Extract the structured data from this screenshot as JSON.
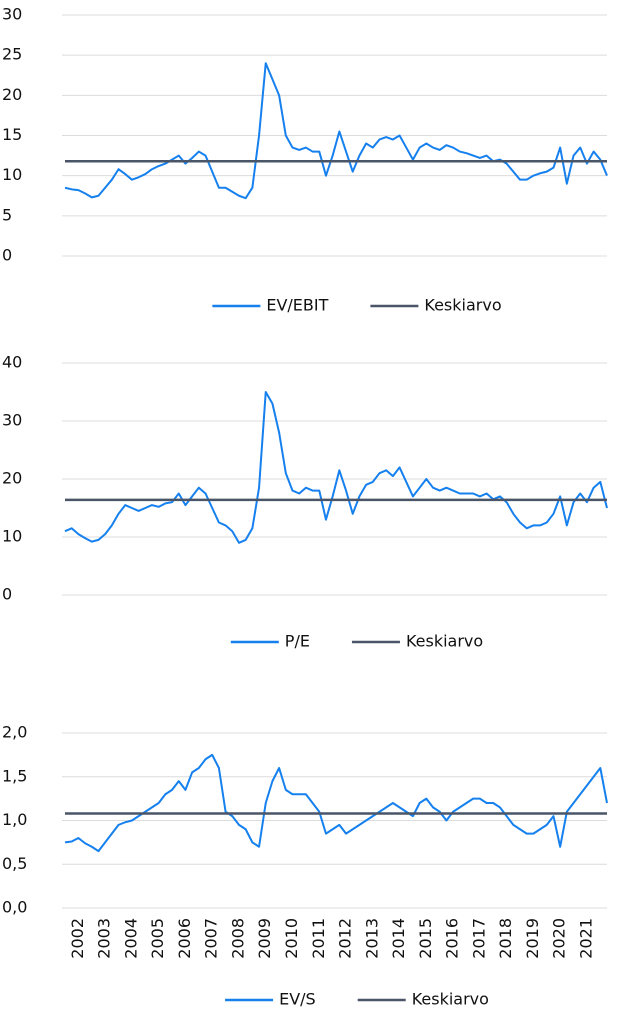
{
  "chart_data": [
    {
      "type": "line",
      "ylim": [
        0,
        30
      ],
      "yticks": [
        0,
        5,
        10,
        15,
        20,
        25,
        30
      ],
      "grid": true,
      "xlim": [
        2001.5,
        2021.75
      ],
      "x": [
        2001.5,
        2001.75,
        2002,
        2002.25,
        2002.5,
        2002.75,
        2003,
        2003.25,
        2003.5,
        2003.75,
        2004,
        2004.25,
        2004.5,
        2004.75,
        2005,
        2005.25,
        2005.5,
        2005.75,
        2006,
        2006.25,
        2006.5,
        2006.75,
        2007,
        2007.25,
        2007.5,
        2007.75,
        2008,
        2008.25,
        2008.5,
        2008.75,
        2009,
        2009.25,
        2009.5,
        2009.75,
        2010,
        2010.25,
        2010.5,
        2010.75,
        2011,
        2011.25,
        2011.5,
        2011.75,
        2012,
        2012.25,
        2012.5,
        2012.75,
        2013,
        2013.25,
        2013.5,
        2013.75,
        2014,
        2014.25,
        2014.5,
        2014.75,
        2015,
        2015.25,
        2015.5,
        2015.75,
        2016,
        2016.25,
        2016.5,
        2016.75,
        2017,
        2017.25,
        2017.5,
        2017.75,
        2018,
        2018.25,
        2018.5,
        2018.75,
        2019,
        2019.25,
        2019.5,
        2019.75,
        2020,
        2020.25,
        2020.5,
        2020.75,
        2021,
        2021.25,
        2021.5,
        2021.75
      ],
      "series": [
        {
          "name": "EV/EBIT",
          "color": "#1580ee",
          "values": [
            8.5,
            8.3,
            8.2,
            7.8,
            7.3,
            7.5,
            8.5,
            9.5,
            10.8,
            10.2,
            9.5,
            9.8,
            10.2,
            10.8,
            11.2,
            11.5,
            12,
            12.5,
            11.5,
            12.2,
            13,
            12.5,
            10.5,
            8.5,
            8.5,
            8,
            7.5,
            7.2,
            8.5,
            15,
            24,
            22,
            20,
            15,
            13.5,
            13.2,
            13.5,
            13,
            13,
            10,
            12.5,
            15.5,
            13,
            10.5,
            12.5,
            14,
            13.5,
            14.5,
            14.8,
            14.5,
            15,
            13.5,
            12,
            13.5,
            14,
            13.5,
            13.2,
            13.8,
            13.5,
            13,
            12.8,
            12.5,
            12.2,
            12.5,
            11.8,
            12,
            11.5,
            10.5,
            9.5,
            9.5,
            10,
            10.3,
            10.5,
            11,
            13.5,
            9,
            12.5,
            13.5,
            11.5,
            13,
            12,
            10
          ]
        },
        {
          "name": "Keskiarvo",
          "color": "#4a5668",
          "x": [
            2001.5,
            2021.75
          ],
          "values": [
            11.8,
            11.8
          ]
        }
      ]
    },
    {
      "type": "line",
      "ylim": [
        0,
        40
      ],
      "yticks": [
        0,
        10,
        20,
        30,
        40
      ],
      "grid": true,
      "xlim": [
        2001.5,
        2021.75
      ],
      "x": [
        2001.5,
        2001.75,
        2002,
        2002.25,
        2002.5,
        2002.75,
        2003,
        2003.25,
        2003.5,
        2003.75,
        2004,
        2004.25,
        2004.5,
        2004.75,
        2005,
        2005.25,
        2005.5,
        2005.75,
        2006,
        2006.25,
        2006.5,
        2006.75,
        2007,
        2007.25,
        2007.5,
        2007.75,
        2008,
        2008.25,
        2008.5,
        2008.75,
        2009,
        2009.25,
        2009.5,
        2009.75,
        2010,
        2010.25,
        2010.5,
        2010.75,
        2011,
        2011.25,
        2011.5,
        2011.75,
        2012,
        2012.25,
        2012.5,
        2012.75,
        2013,
        2013.25,
        2013.5,
        2013.75,
        2014,
        2014.25,
        2014.5,
        2014.75,
        2015,
        2015.25,
        2015.5,
        2015.75,
        2016,
        2016.25,
        2016.5,
        2016.75,
        2017,
        2017.25,
        2017.5,
        2017.75,
        2018,
        2018.25,
        2018.5,
        2018.75,
        2019,
        2019.25,
        2019.5,
        2019.75,
        2020,
        2020.25,
        2020.5,
        2020.75,
        2021,
        2021.25,
        2021.5,
        2021.75
      ],
      "series": [
        {
          "name": "P/E",
          "color": "#1580ee",
          "values": [
            11,
            11.5,
            10.5,
            9.8,
            9.2,
            9.5,
            10.5,
            12,
            14,
            15.5,
            15,
            14.5,
            15,
            15.5,
            15.2,
            15.8,
            16,
            17.5,
            15.5,
            17,
            18.5,
            17.5,
            15,
            12.5,
            12,
            11,
            9,
            9.5,
            11.5,
            18.5,
            35,
            33,
            28,
            21,
            18,
            17.5,
            18.5,
            18,
            18,
            13,
            17,
            21.5,
            18,
            14,
            17,
            19,
            19.5,
            21,
            21.5,
            20.5,
            22,
            19.5,
            17,
            18.5,
            20,
            18.5,
            18,
            18.5,
            18,
            17.5,
            17.5,
            17.5,
            17,
            17.5,
            16.5,
            17,
            16,
            14,
            12.5,
            11.5,
            12,
            12,
            12.5,
            14,
            17,
            12,
            16,
            17.5,
            16,
            18.5,
            19.5,
            15
          ]
        },
        {
          "name": "Keskiarvo",
          "color": "#4a5668",
          "x": [
            2001.5,
            2021.75
          ],
          "values": [
            16.4,
            16.4
          ]
        }
      ]
    },
    {
      "type": "line",
      "ylim": [
        0,
        2
      ],
      "yticks": [
        {
          "value": 0,
          "label": "0,0"
        },
        {
          "value": 0.5,
          "label": "0,5"
        },
        {
          "value": 1,
          "label": "1,0"
        },
        {
          "value": 1.5,
          "label": "1,5"
        },
        {
          "value": 2,
          "label": "2,0"
        }
      ],
      "grid": true,
      "xlim": [
        2001.5,
        2021.75
      ],
      "xticks": [
        2002,
        2003,
        2004,
        2005,
        2006,
        2007,
        2008,
        2009,
        2010,
        2011,
        2012,
        2013,
        2014,
        2015,
        2016,
        2017,
        2018,
        2019,
        2020,
        2021
      ],
      "x": [
        2001.5,
        2001.75,
        2002,
        2002.25,
        2002.5,
        2002.75,
        2003,
        2003.25,
        2003.5,
        2003.75,
        2004,
        2004.25,
        2004.5,
        2004.75,
        2005,
        2005.25,
        2005.5,
        2005.75,
        2006,
        2006.25,
        2006.5,
        2006.75,
        2007,
        2007.25,
        2007.5,
        2007.75,
        2008,
        2008.25,
        2008.5,
        2008.75,
        2009,
        2009.25,
        2009.5,
        2009.75,
        2010,
        2010.25,
        2010.5,
        2010.75,
        2011,
        2011.25,
        2011.5,
        2011.75,
        2012,
        2012.25,
        2012.5,
        2012.75,
        2013,
        2013.25,
        2013.5,
        2013.75,
        2014,
        2014.25,
        2014.5,
        2014.75,
        2015,
        2015.25,
        2015.5,
        2015.75,
        2016,
        2016.25,
        2016.5,
        2016.75,
        2017,
        2017.25,
        2017.5,
        2017.75,
        2018,
        2018.25,
        2018.5,
        2018.75,
        2019,
        2019.25,
        2019.5,
        2019.75,
        2020,
        2020.25,
        2020.5,
        2020.75,
        2021,
        2021.25,
        2021.5,
        2021.75
      ],
      "series": [
        {
          "name": "EV/S",
          "color": "#1580ee",
          "values": [
            0.75,
            0.76,
            0.8,
            0.74,
            0.7,
            0.65,
            0.75,
            0.85,
            0.95,
            0.98,
            1.0,
            1.05,
            1.1,
            1.15,
            1.2,
            1.3,
            1.35,
            1.45,
            1.35,
            1.55,
            1.6,
            1.7,
            1.75,
            1.6,
            1.1,
            1.05,
            0.95,
            0.9,
            0.75,
            0.7,
            1.2,
            1.45,
            1.6,
            1.35,
            1.3,
            1.3,
            1.3,
            1.2,
            1.1,
            0.85,
            0.9,
            0.95,
            0.85,
            0.9,
            0.95,
            1.0,
            1.05,
            1.1,
            1.15,
            1.2,
            1.15,
            1.1,
            1.05,
            1.2,
            1.25,
            1.15,
            1.1,
            1.0,
            1.1,
            1.15,
            1.2,
            1.25,
            1.25,
            1.2,
            1.2,
            1.15,
            1.05,
            0.95,
            0.9,
            0.85,
            0.85,
            0.9,
            0.95,
            1.05,
            0.7,
            1.1,
            1.2,
            1.3,
            1.4,
            1.5,
            1.6,
            1.2
          ]
        },
        {
          "name": "Keskiarvo",
          "color": "#4a5668",
          "x": [
            2001.5,
            2021.75
          ],
          "values": [
            1.08,
            1.08
          ]
        }
      ]
    }
  ]
}
